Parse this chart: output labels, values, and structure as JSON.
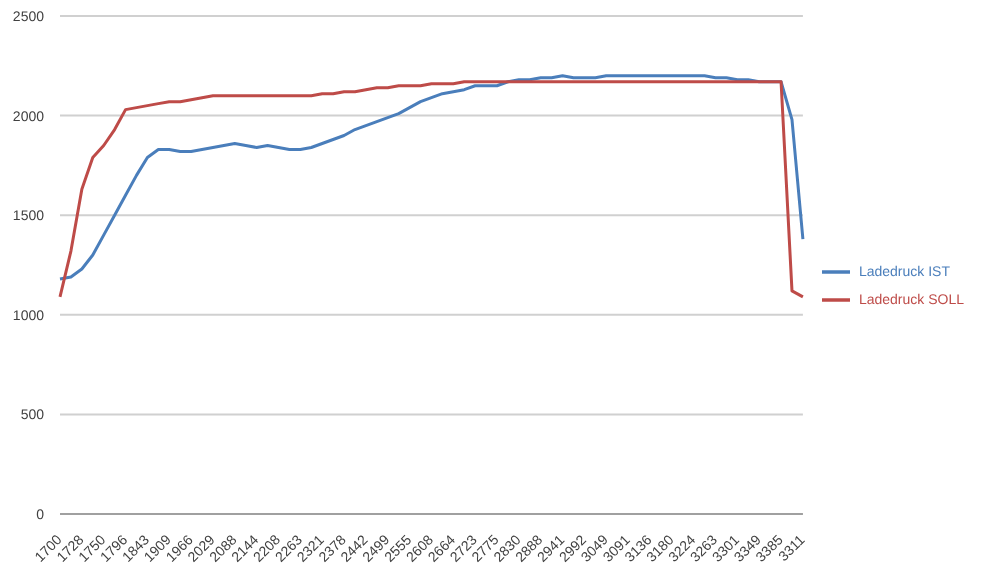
{
  "chart_data": {
    "type": "line",
    "categories": [
      "1700",
      null,
      "1728",
      null,
      "1750",
      null,
      "1796",
      null,
      "1843",
      null,
      "1909",
      null,
      "1966",
      null,
      "2029",
      null,
      "2088",
      null,
      "2144",
      null,
      "2208",
      null,
      "2263",
      null,
      "2321",
      null,
      "2378",
      null,
      "2442",
      null,
      "2499",
      null,
      "2555",
      null,
      "2608",
      null,
      "2664",
      null,
      "2723",
      null,
      "2775",
      null,
      "2830",
      null,
      "2888",
      null,
      "2941",
      null,
      "2992",
      null,
      "3049",
      null,
      "3091",
      null,
      "3136",
      null,
      "3180",
      null,
      "3224",
      null,
      "3263",
      null,
      "3301",
      null,
      "3349",
      null,
      "3385",
      null,
      "3311"
    ],
    "series": [
      {
        "name": "Ladedruck IST",
        "color": "#4a7ebb",
        "values": [
          1180,
          1190,
          1230,
          1300,
          1400,
          1500,
          1600,
          1700,
          1790,
          1830,
          1830,
          1820,
          1820,
          1830,
          1840,
          1850,
          1860,
          1850,
          1840,
          1850,
          1840,
          1830,
          1830,
          1840,
          1860,
          1880,
          1900,
          1930,
          1950,
          1970,
          1990,
          2010,
          2040,
          2070,
          2090,
          2110,
          2120,
          2130,
          2150,
          2150,
          2150,
          2170,
          2180,
          2180,
          2190,
          2190,
          2200,
          2190,
          2190,
          2190,
          2200,
          2200,
          2200,
          2200,
          2200,
          2200,
          2200,
          2200,
          2200,
          2200,
          2190,
          2190,
          2180,
          2180,
          2170,
          2170,
          2170,
          1980,
          1380
        ]
      },
      {
        "name": "Ladedruck SOLL",
        "color": "#be4b48",
        "values": [
          1090,
          1320,
          1630,
          1790,
          1850,
          1930,
          2030,
          2040,
          2050,
          2060,
          2070,
          2070,
          2080,
          2090,
          2100,
          2100,
          2100,
          2100,
          2100,
          2100,
          2100,
          2100,
          2100,
          2100,
          2110,
          2110,
          2120,
          2120,
          2130,
          2140,
          2140,
          2150,
          2150,
          2150,
          2160,
          2160,
          2160,
          2170,
          2170,
          2170,
          2170,
          2170,
          2170,
          2170,
          2170,
          2170,
          2170,
          2170,
          2170,
          2170,
          2170,
          2170,
          2170,
          2170,
          2170,
          2170,
          2170,
          2170,
          2170,
          2170,
          2170,
          2170,
          2170,
          2170,
          2170,
          2170,
          2170,
          1120,
          1090
        ]
      }
    ],
    "ylim": [
      0,
      2500
    ],
    "yticks": [
      0,
      500,
      1000,
      1500,
      2000,
      2500
    ],
    "grid": "y",
    "legend": "right",
    "marker": "none",
    "line_style": "solid"
  }
}
